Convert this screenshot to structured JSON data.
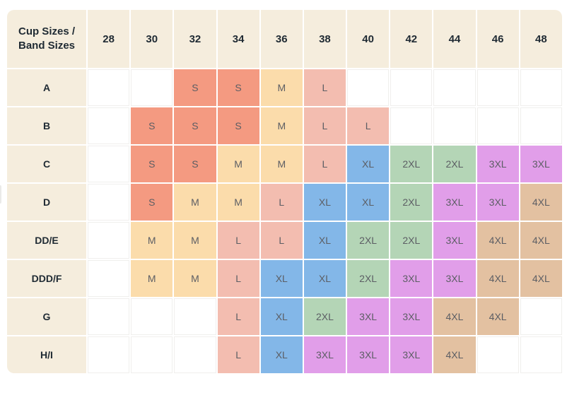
{
  "table": {
    "corner_label": "Cup Sizes / Band Sizes",
    "band_sizes": [
      "28",
      "30",
      "32",
      "34",
      "36",
      "38",
      "40",
      "42",
      "44",
      "46",
      "48"
    ],
    "rows": [
      {
        "cup": "A",
        "cells": [
          "",
          "",
          "S",
          "S",
          "M",
          "L",
          "",
          "",
          "",
          "",
          ""
        ]
      },
      {
        "cup": "B",
        "cells": [
          "",
          "S",
          "S",
          "S",
          "M",
          "L",
          "L",
          "",
          "",
          "",
          ""
        ]
      },
      {
        "cup": "C",
        "cells": [
          "",
          "S",
          "S",
          "M",
          "M",
          "L",
          "XL",
          "2XL",
          "2XL",
          "3XL",
          "3XL"
        ]
      },
      {
        "cup": "D",
        "cells": [
          "",
          "S",
          "M",
          "M",
          "L",
          "XL",
          "XL",
          "2XL",
          "3XL",
          "3XL",
          "4XL"
        ]
      },
      {
        "cup": "DD/E",
        "cells": [
          "",
          "M",
          "M",
          "L",
          "L",
          "XL",
          "2XL",
          "2XL",
          "3XL",
          "4XL",
          "4XL"
        ]
      },
      {
        "cup": "DDD/F",
        "cells": [
          "",
          "M",
          "M",
          "L",
          "XL",
          "XL",
          "2XL",
          "3XL",
          "3XL",
          "4XL",
          "4XL"
        ]
      },
      {
        "cup": "G",
        "cells": [
          "",
          "",
          "",
          "L",
          "XL",
          "2XL",
          "3XL",
          "3XL",
          "4XL",
          "4XL",
          ""
        ]
      },
      {
        "cup": "H/I",
        "cells": [
          "",
          "",
          "",
          "L",
          "XL",
          "3XL",
          "3XL",
          "3XL",
          "4XL",
          "",
          ""
        ]
      }
    ]
  },
  "colors": {
    "S": "#f49a81",
    "M": "#fbdcab",
    "L": "#f3bdb0",
    "XL": "#83b7e8",
    "2XL": "#b4d5b6",
    "3XL": "#e19ee9",
    "4XL": "#e3c1a1",
    "header_bg": "#f5eddd",
    "empty_bg": "#ffffff",
    "header_text": "#1f2a33",
    "value_text": "#5c5e64"
  }
}
